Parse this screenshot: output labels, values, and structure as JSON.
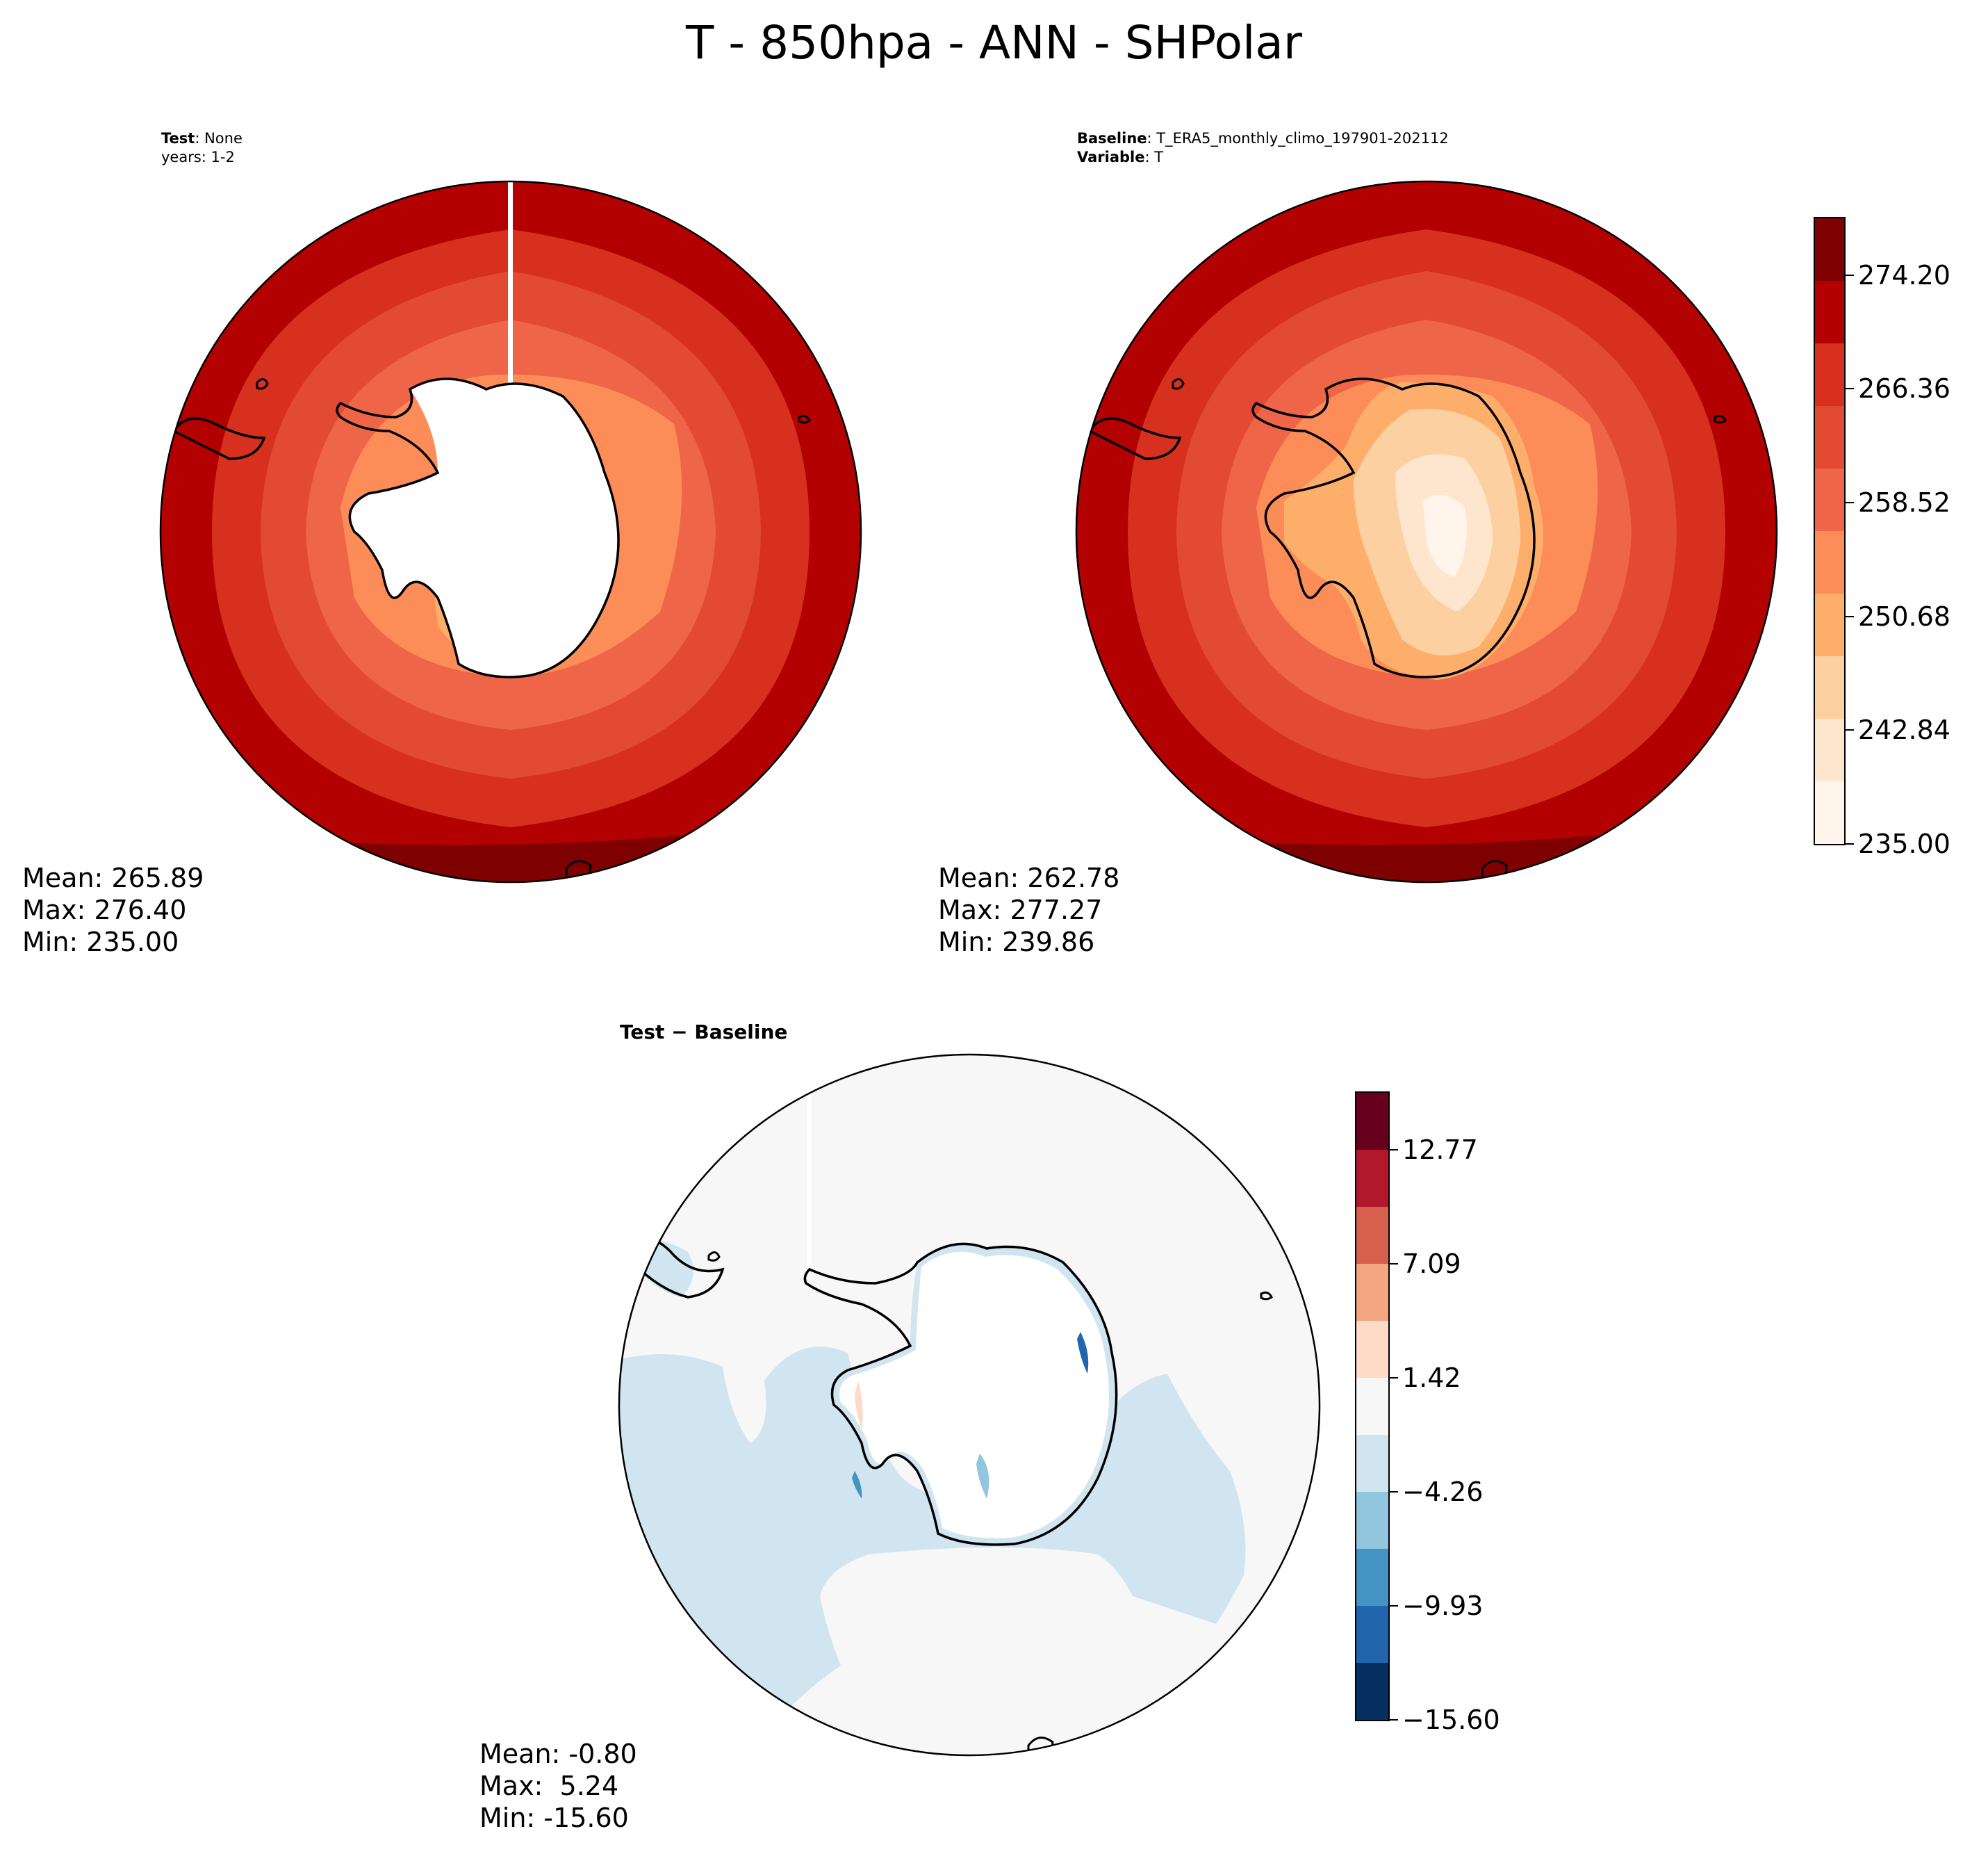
{
  "figure": {
    "title": "T - 850hpa - ANN - SHPolar"
  },
  "test_panel": {
    "label_key": "Test",
    "label_value": ": None",
    "label_line2": "years: 1-2",
    "stats": {
      "mean": "Mean: 265.89",
      "max": "Max: 276.40",
      "min": "Min: 235.00"
    }
  },
  "baseline_panel": {
    "label_key": "Baseline",
    "label_value": ": T_ERA5_monthly_climo_197901-202112",
    "label2_key": "Variable",
    "label2_value": ": T",
    "stats": {
      "mean": "Mean: 262.78",
      "max": "Max: 277.27",
      "min": "Min: 239.86"
    }
  },
  "diff_panel": {
    "title": "Test − Baseline",
    "stats": {
      "mean": "Mean: -0.80",
      "max": "Max:  5.24",
      "min": "Min: -15.60"
    }
  },
  "colorbar_abs": {
    "ticks": [
      "274.20",
      "266.36",
      "258.52",
      "250.68",
      "242.84",
      "235.00"
    ],
    "tick_values": [
      274.2,
      266.36,
      258.52,
      250.68,
      242.84,
      235.0
    ],
    "range": [
      235.0,
      278.12
    ],
    "colors": [
      "#fff5eb",
      "#fee6ce",
      "#fdd0a2",
      "#fdae6b",
      "#fc8d59",
      "#ef6548",
      "#e34a33",
      "#d7301f",
      "#b30000",
      "#7f0000"
    ]
  },
  "colorbar_diff": {
    "ticks": [
      "12.77",
      "7.09",
      "1.42",
      "−4.26",
      "−9.93",
      "−15.60"
    ],
    "tick_values": [
      12.77,
      7.09,
      1.42,
      -4.26,
      -9.93,
      -15.6
    ],
    "range": [
      -15.6,
      15.6
    ],
    "colors": [
      "#053061",
      "#2166ac",
      "#4393c3",
      "#92c5de",
      "#d1e5f0",
      "#f7f7f7",
      "#fddbc7",
      "#f4a582",
      "#d6604d",
      "#b2182b",
      "#67001f"
    ]
  }
}
